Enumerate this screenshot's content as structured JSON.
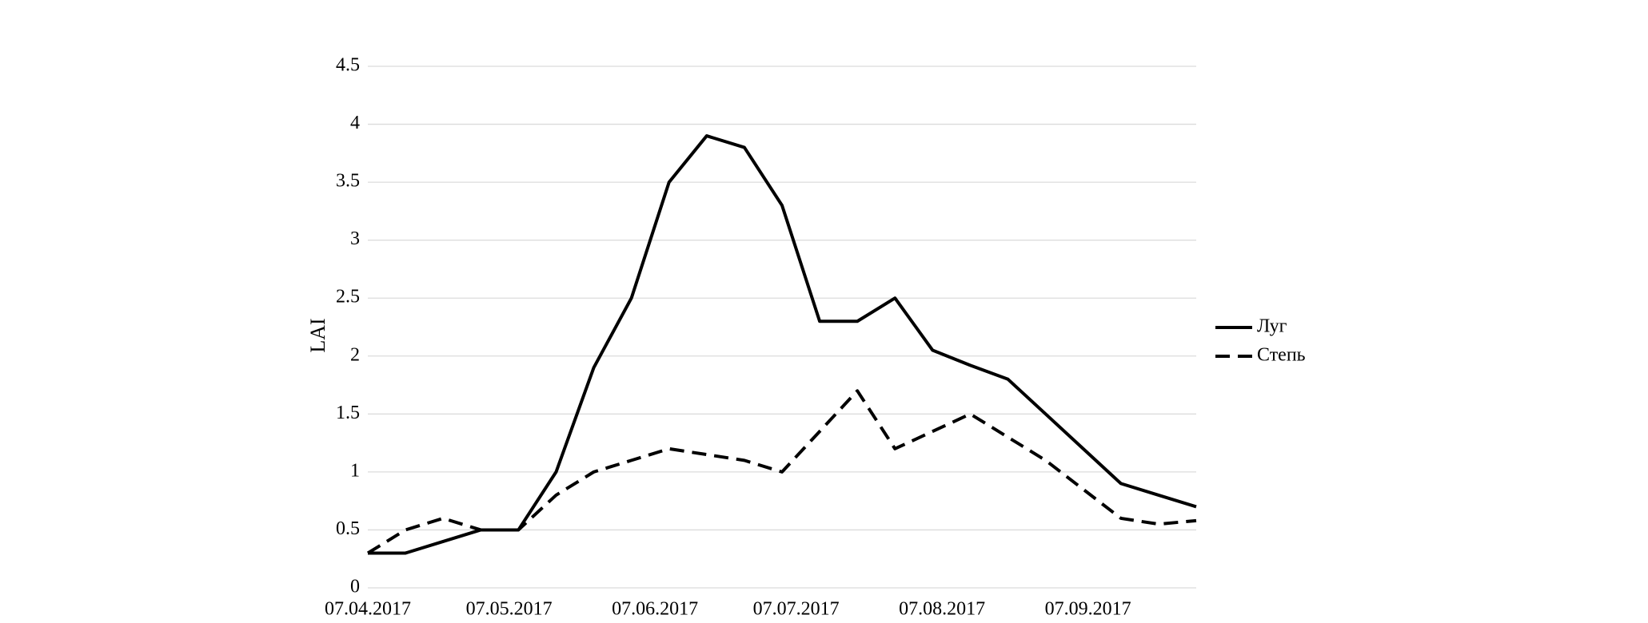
{
  "chart_data": {
    "type": "line",
    "y_label": "LAI",
    "x": [
      "07.04.2017",
      "15.04.2017",
      "23.04.2017",
      "01.05.2017",
      "09.05.2017",
      "17.05.2017",
      "25.05.2017",
      "02.06.2017",
      "10.06.2017",
      "18.06.2017",
      "26.06.2017",
      "04.07.2017",
      "12.07.2017",
      "20.07.2017",
      "28.07.2017",
      "05.08.2017",
      "13.08.2017",
      "21.08.2017",
      "29.08.2017",
      "06.09.2017",
      "14.09.2017",
      "22.09.2017",
      "30.09.2017"
    ],
    "series": [
      {
        "name": "Луг",
        "color": "#000000",
        "dash": "solid",
        "values": [
          0.3,
          0.3,
          0.4,
          0.5,
          0.5,
          1.0,
          1.9,
          2.5,
          3.5,
          3.9,
          3.8,
          3.3,
          2.3,
          2.3,
          2.5,
          2.05,
          1.92,
          1.8,
          1.5,
          1.2,
          0.9,
          0.8,
          0.7
        ]
      },
      {
        "name": "Степь",
        "color": "#000000",
        "dash": "dashed",
        "values": [
          0.3,
          0.5,
          0.6,
          0.5,
          0.5,
          0.8,
          1.0,
          1.1,
          1.2,
          1.15,
          1.1,
          1.0,
          1.35,
          1.7,
          1.2,
          1.35,
          1.5,
          1.3,
          1.1,
          0.85,
          0.6,
          0.55,
          0.58
        ]
      }
    ],
    "xlim": [
      "07.04.2017",
      "30.09.2017"
    ],
    "xticks": [
      "07.04.2017",
      "07.05.2017",
      "07.06.2017",
      "07.07.2017",
      "07.08.2017",
      "07.09.2017"
    ],
    "ylim": [
      0,
      4.5
    ],
    "yticks": [
      0,
      0.5,
      1,
      1.5,
      2,
      2.5,
      3,
      3.5,
      4,
      4.5
    ],
    "grid": true,
    "legend": "right"
  }
}
